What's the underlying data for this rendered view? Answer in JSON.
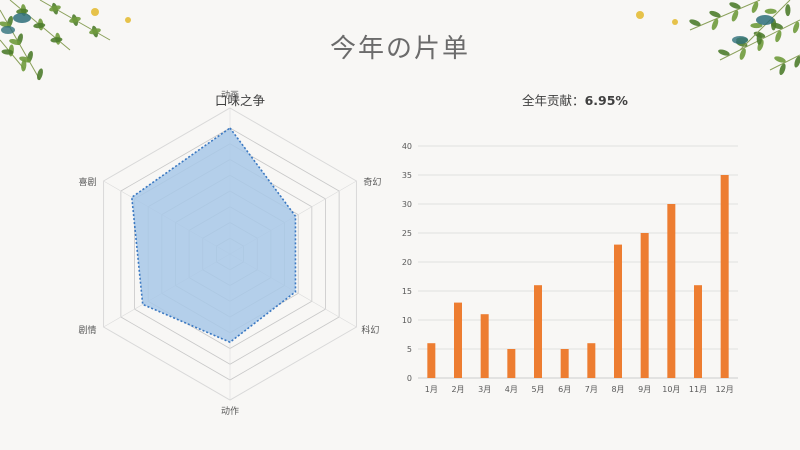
{
  "page": {
    "title": "今年の片单"
  },
  "decoration": {
    "leaf_colors": [
      "#6f9a3c",
      "#4e7c2e",
      "#2e6f7a",
      "#e6c24a"
    ]
  },
  "chart_data": [
    {
      "type": "radar",
      "title": "口味之争",
      "axes": [
        "动画",
        "奇幻",
        "科幻",
        "动作",
        "剧情",
        "喜剧"
      ],
      "values": [
        10,
        6,
        6,
        7,
        8,
        9
      ],
      "rlim": [
        0,
        10
      ],
      "ring_count": 8,
      "fill_color": "#a8c8e8",
      "line_color": "#3a78c2",
      "grid": true
    },
    {
      "type": "bar",
      "title_prefix": "全年贡献：",
      "title_value": "6.95%",
      "categories": [
        "1月",
        "2月",
        "3月",
        "4月",
        "5月",
        "6月",
        "7月",
        "8月",
        "9月",
        "10月",
        "11月",
        "12月"
      ],
      "values": [
        6,
        13,
        11,
        5,
        16,
        5,
        6,
        23,
        25,
        30,
        16,
        35
      ],
      "ylim": [
        0,
        40
      ],
      "yticks": [
        0,
        5,
        10,
        15,
        20,
        25,
        30,
        35,
        40
      ],
      "bar_color": "#ed7d31",
      "grid": true,
      "xlabel": "",
      "ylabel": ""
    }
  ]
}
